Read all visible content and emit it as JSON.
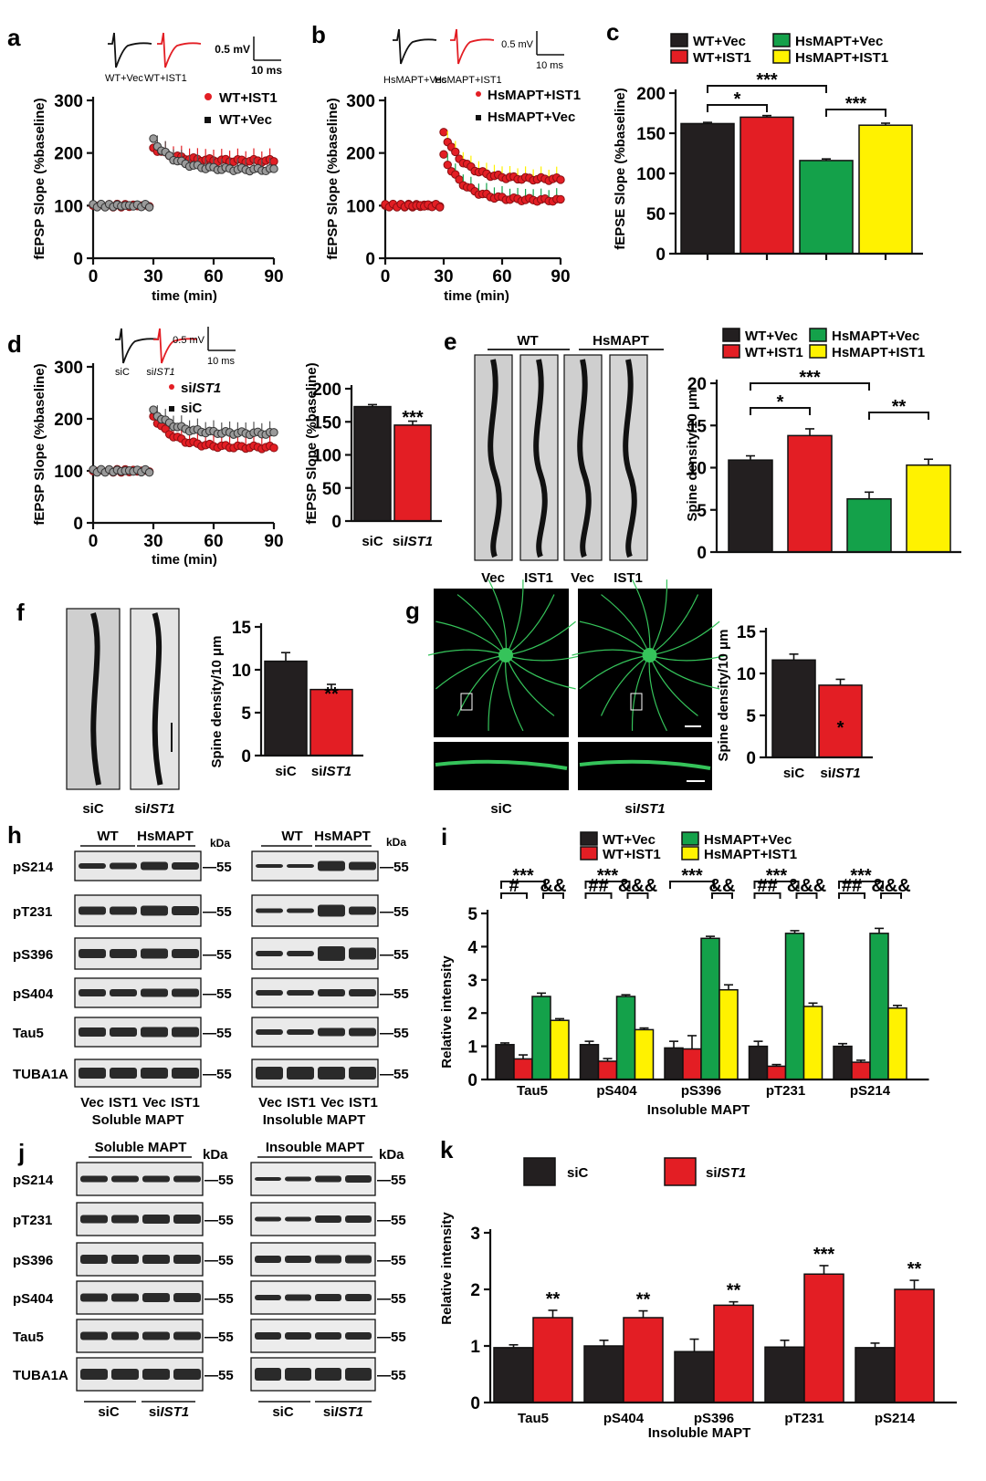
{
  "colors": {
    "black": "#231f20",
    "red": "#e31e24",
    "green": "#14a14a",
    "yellow": "#fff200",
    "greyDot": "#9a9a9a",
    "fluor": "#35c35a"
  },
  "panels": {
    "a": {
      "letter": "a",
      "trace_left_label": "WT+Vec",
      "trace_right_label": "WT+IST1",
      "scale_mv": "0.5 mV",
      "scale_ms": "10 ms",
      "legend": [
        "WT+IST1",
        "WT+Vec"
      ],
      "ylabel": "fEPSP Slope (%baseline)",
      "xlabel": "time (min)",
      "yticks": [
        "0",
        "100",
        "200",
        "300"
      ],
      "xticks": [
        "0",
        "30",
        "60",
        "90"
      ]
    },
    "b": {
      "letter": "b",
      "trace_left_label": "HsMAPT+Vec",
      "trace_right_label": "HsMAPT+IST1",
      "scale_mv": "0.5 mV",
      "scale_ms": "10 ms",
      "legend": [
        "HsMAPT+IST1",
        "HsMAPT+Vec"
      ],
      "ylabel": "fEPSP Slope (%baseline)",
      "xlabel": "time (min)",
      "yticks": [
        "0",
        "100",
        "200",
        "300"
      ],
      "xticks": [
        "0",
        "30",
        "60",
        "90"
      ]
    },
    "c": {
      "letter": "c",
      "legend": [
        "WT+Vec",
        "WT+IST1",
        "HsMAPT+Vec",
        "HsMAPT+IST1"
      ],
      "ylabel": "fEPSE Slope (%baseline)",
      "yticks": [
        "0",
        "50",
        "100",
        "150",
        "200"
      ],
      "stars": [
        "***",
        "*",
        "***"
      ]
    },
    "d": {
      "letter": "d",
      "trace_left_label": "siC",
      "trace_right_label_pre": "si",
      "trace_right_label_it": "IST1",
      "scale_mv": "0.5 mV",
      "scale_ms": "10 ms",
      "legend_pre": [
        "si",
        ""
      ],
      "legend_it": [
        "IST1",
        ""
      ],
      "legend_plain": [
        "",
        "siC"
      ],
      "ylabel": "fEPSP Slope (%baseline)",
      "xlabel": "time (min)",
      "yticks": [
        "0",
        "100",
        "200",
        "300"
      ],
      "xticks": [
        "0",
        "30",
        "60",
        "90"
      ],
      "bar_ylabel": "fEPSP Slope (%baseline)",
      "bar_yticks": [
        "0",
        "50",
        "100",
        "150",
        "200"
      ],
      "bar_cats_pre": [
        "siC",
        "si"
      ],
      "bar_cats_it": [
        "",
        "IST1"
      ],
      "star": "***"
    },
    "e": {
      "letter": "e",
      "group_wt": "WT",
      "group_hs": "HsMAPT",
      "img_labels": [
        "Vec",
        "IST1",
        "Vec",
        "IST1"
      ],
      "legend": [
        "WT+Vec",
        "WT+IST1",
        "HsMAPT+Vec",
        "HsMAPT+IST1"
      ],
      "ylabel": "Spine density/10 μm",
      "yticks": [
        "0",
        "5",
        "10",
        "15",
        "20"
      ],
      "stars": [
        "***",
        "*",
        "**"
      ]
    },
    "f": {
      "letter": "f",
      "img_labels_pre": [
        "siC",
        "si"
      ],
      "img_labels_it": [
        "",
        "IST1"
      ],
      "ylabel": "Spine density/10 μm",
      "yticks": [
        "0",
        "5",
        "10",
        "15"
      ],
      "star": "**"
    },
    "g": {
      "letter": "g",
      "img_labels_pre": [
        "siC",
        "si"
      ],
      "img_labels_it": [
        "",
        "IST1"
      ],
      "ylabel": "Spine density/10 μm",
      "yticks": [
        "0",
        "5",
        "10",
        "15"
      ],
      "star": "*"
    },
    "h": {
      "letter": "h",
      "group_wt": "WT",
      "group_hs": "HsMAPT",
      "kda": "kDa",
      "marker": "55",
      "rows": [
        "pS214",
        "pT231",
        "pS396",
        "pS404",
        "Tau5",
        "TUBA1A"
      ],
      "lanes": [
        "Vec",
        "IST1",
        "Vec",
        "IST1"
      ],
      "left_title": "Soluble MAPT",
      "right_title": "Insoluble MAPT"
    },
    "i": {
      "letter": "i",
      "legend": [
        "WT+Vec",
        "WT+IST1",
        "HsMAPT+Vec",
        "HsMAPT+IST1"
      ],
      "ylabel": "Relative intensity",
      "xlabel": "Insoluble MAPT",
      "yticks": [
        "0",
        "1",
        "2",
        "3",
        "4",
        "5"
      ],
      "stars": [
        "***",
        "***",
        "***",
        "***",
        "***"
      ],
      "hash": [
        "#",
        "##",
        "",
        "##",
        "##"
      ],
      "amp": [
        "&&",
        "&&&",
        "&&",
        "&&&",
        "&&&"
      ]
    },
    "j": {
      "letter": "j",
      "left_title": "Soluble MAPT",
      "right_title": "Insouble MAPT",
      "kda": "kDa",
      "marker": "55",
      "rows": [
        "pS214",
        "pT231",
        "pS396",
        "pS404",
        "Tau5",
        "TUBA1A"
      ],
      "lanes_pre": [
        "siC",
        "si"
      ],
      "lanes_it": [
        "",
        "IST1"
      ]
    },
    "k": {
      "letter": "k",
      "legend_pre": [
        "siC",
        "si"
      ],
      "legend_it": [
        "",
        "IST1"
      ],
      "ylabel": "Relative intensity",
      "xlabel": "Insoluble MAPT",
      "yticks": [
        "0",
        "1",
        "2",
        "3"
      ],
      "stars": [
        "**",
        "**",
        "**",
        "***",
        "**"
      ]
    }
  },
  "chart_data": [
    {
      "id": "a",
      "type": "scatter",
      "xlabel": "time (min)",
      "ylabel": "fEPSP Slope (%baseline)",
      "xlim": [
        0,
        90
      ],
      "ylim": [
        0,
        300
      ],
      "series": [
        {
          "name": "WT+IST1",
          "baseline": 100,
          "peak": 210,
          "end": 185
        },
        {
          "name": "WT+Vec",
          "baseline": 100,
          "peak": 225,
          "end": 168
        }
      ]
    },
    {
      "id": "b",
      "type": "scatter",
      "xlabel": "time (min)",
      "ylabel": "fEPSP Slope (%baseline)",
      "xlim": [
        0,
        90
      ],
      "ylim": [
        0,
        300
      ],
      "series": [
        {
          "name": "HsMAPT+IST1",
          "baseline": 100,
          "peak": 240,
          "end": 150
        },
        {
          "name": "HsMAPT+Vec",
          "baseline": 100,
          "peak": 195,
          "end": 110
        }
      ]
    },
    {
      "id": "c",
      "type": "bar",
      "ylabel": "fEPSE Slope (%baseline)",
      "ylim": [
        0,
        200
      ],
      "categories": [
        "WT+Vec",
        "WT+IST1",
        "HsMAPT+Vec",
        "HsMAPT+IST1"
      ],
      "values": [
        162,
        170,
        116,
        160
      ],
      "errors": [
        1.5,
        2,
        2,
        2.5
      ]
    },
    {
      "id": "d",
      "type": "scatter",
      "xlabel": "time (min)",
      "ylabel": "fEPSP Slope (%baseline)",
      "xlim": [
        0,
        90
      ],
      "ylim": [
        0,
        300
      ],
      "series": [
        {
          "name": "siIST1",
          "baseline": 100,
          "peak": 205,
          "end": 145
        },
        {
          "name": "siC",
          "baseline": 100,
          "peak": 215,
          "end": 172
        }
      ]
    },
    {
      "id": "d2",
      "type": "bar",
      "ylabel": "fEPSP Slope (%baseline)",
      "ylim": [
        0,
        200
      ],
      "categories": [
        "siC",
        "siIST1"
      ],
      "values": [
        173,
        145
      ],
      "errors": [
        3,
        6
      ]
    },
    {
      "id": "e",
      "type": "bar",
      "ylabel": "Spine density/10 μm",
      "ylim": [
        0,
        20
      ],
      "categories": [
        "WT+Vec",
        "WT+IST1",
        "HsMAPT+Vec",
        "HsMAPT+IST1"
      ],
      "values": [
        10.9,
        13.8,
        6.3,
        10.3
      ],
      "errors": [
        0.5,
        0.8,
        0.8,
        0.7
      ]
    },
    {
      "id": "f",
      "type": "bar",
      "ylabel": "Spine density/10 μm",
      "ylim": [
        0,
        15
      ],
      "categories": [
        "siC",
        "siIST1"
      ],
      "values": [
        11.0,
        7.7
      ],
      "errors": [
        1.0,
        0.6
      ]
    },
    {
      "id": "g",
      "type": "bar",
      "ylabel": "Spine density/10 μm",
      "ylim": [
        0,
        15
      ],
      "categories": [
        "siC",
        "siIST1"
      ],
      "values": [
        11.6,
        8.6
      ],
      "errors": [
        0.7,
        0.7
      ]
    },
    {
      "id": "i",
      "type": "bar",
      "ylabel": "Relative intensity",
      "xlabel": "Insoluble MAPT",
      "ylim": [
        0,
        5
      ],
      "categories": [
        "Tau5",
        "pS404",
        "pS396",
        "pT231",
        "pS214"
      ],
      "series": [
        {
          "name": "WT+Vec",
          "values": [
            1.05,
            1.05,
            0.95,
            1.0,
            1.0
          ],
          "errors": [
            0.05,
            0.1,
            0.2,
            0.15,
            0.08
          ]
        },
        {
          "name": "WT+IST1",
          "values": [
            0.62,
            0.55,
            0.92,
            0.4,
            0.52
          ],
          "errors": [
            0.12,
            0.08,
            0.4,
            0.05,
            0.06
          ]
        },
        {
          "name": "HsMAPT+Vec",
          "values": [
            2.5,
            2.5,
            4.25,
            4.4,
            4.4
          ],
          "errors": [
            0.1,
            0.05,
            0.06,
            0.08,
            0.15
          ]
        },
        {
          "name": "HsMAPT+IST1",
          "values": [
            1.78,
            1.5,
            2.7,
            2.2,
            2.15
          ],
          "errors": [
            0.05,
            0.05,
            0.15,
            0.1,
            0.08
          ]
        }
      ]
    },
    {
      "id": "k",
      "type": "bar",
      "ylabel": "Relative intensity",
      "xlabel": "Insoluble MAPT",
      "ylim": [
        0,
        3
      ],
      "categories": [
        "Tau5",
        "pS404",
        "pS396",
        "pT231",
        "pS214"
      ],
      "series": [
        {
          "name": "siC",
          "values": [
            0.97,
            1.0,
            0.9,
            0.98,
            0.97
          ],
          "errors": [
            0.05,
            0.1,
            0.22,
            0.12,
            0.08
          ]
        },
        {
          "name": "siIST1",
          "values": [
            1.5,
            1.5,
            1.72,
            2.27,
            2.0
          ],
          "errors": [
            0.13,
            0.12,
            0.06,
            0.15,
            0.16
          ]
        }
      ]
    }
  ]
}
